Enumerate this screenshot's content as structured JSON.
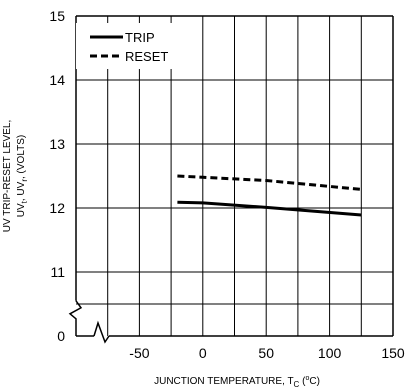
{
  "chart_data": {
    "type": "line",
    "title": "",
    "xlabel": "JUNCTION TEMPERATURE, T",
    "xlabel_sub": "C",
    "xlabel_unit_open": " (",
    "xlabel_unit_sup": "o",
    "xlabel_unit_close": "C)",
    "ylabel_line1": "UV TRIP-RESET LEVEL,",
    "ylabel_line2_a": "UV",
    "ylabel_line2_sub1": "t",
    "ylabel_line2_b": ", UV",
    "ylabel_line2_sub2": "r",
    "ylabel_line2_c": ", (VOLTS)",
    "x_ticks": [
      -50,
      0,
      50,
      100,
      150
    ],
    "x_tick_labels": [
      "-50",
      "0",
      "50",
      "100",
      "150"
    ],
    "xlim": [
      -100,
      150
    ],
    "y_ticks": [
      11,
      12,
      13,
      14,
      15
    ],
    "y_tick_labels": [
      "11",
      "12",
      "13",
      "14",
      "15"
    ],
    "y_zero_label": "0",
    "ylim": [
      10,
      15
    ],
    "y_axis_break": true,
    "grid": true,
    "legend_position": "top-left",
    "series": [
      {
        "name": "TRIP",
        "style": "solid",
        "color": "#000000",
        "x": [
          -20,
          0,
          50,
          125
        ],
        "y": [
          12.09,
          12.08,
          12.01,
          11.89
        ]
      },
      {
        "name": "RESET",
        "style": "dashed",
        "color": "#000000",
        "x": [
          -20,
          0,
          50,
          125
        ],
        "y": [
          12.5,
          12.48,
          12.43,
          12.29
        ]
      }
    ]
  }
}
